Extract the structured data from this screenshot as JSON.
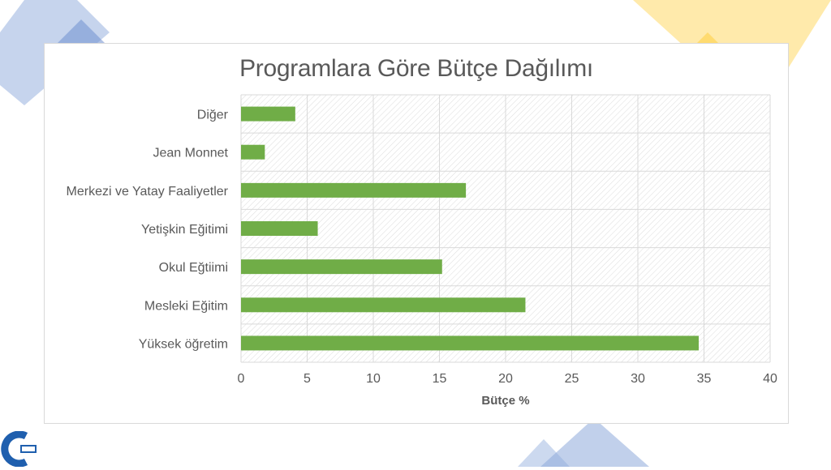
{
  "colors": {
    "bar": "#70ad47",
    "deco_blue": "#8eaadb",
    "deco_yellow": "#ffd966",
    "text": "#595959",
    "grid": "#d9d9d9"
  },
  "chart_data": {
    "type": "bar",
    "orientation": "horizontal",
    "title": "Programlara Göre Bütçe Dağılımı",
    "xlabel": "Bütçe %",
    "ylabel": "",
    "categories": [
      "Diğer",
      "Jean Monnet",
      "Merkezi ve Yatay Faaliyetler",
      "Yetişkin Eğitimi",
      "Okul Eğtiimi",
      "Mesleki Eğitim",
      "Yüksek öğretim"
    ],
    "values": [
      4.1,
      1.8,
      17.0,
      5.8,
      15.2,
      21.5,
      34.6
    ],
    "xlim": [
      0,
      40
    ],
    "xticks": [
      "0",
      "5",
      "10",
      "15",
      "20",
      "25",
      "30",
      "35",
      "40"
    ],
    "grid": true,
    "legend": "none"
  },
  "logo": {
    "icon": "c-logo-icon"
  }
}
